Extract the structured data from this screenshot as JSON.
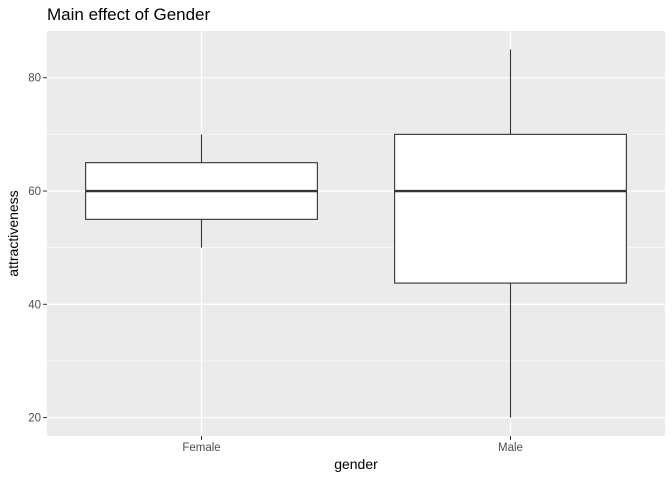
{
  "chart_data": {
    "type": "boxplot",
    "title": "Main effect of Gender",
    "xlabel": "gender",
    "ylabel": "attractiveness",
    "categories": [
      "Female",
      "Male"
    ],
    "boxes": [
      {
        "category": "Female",
        "whisker_low": 50,
        "q1": 55,
        "median": 60,
        "q3": 65,
        "whisker_high": 70
      },
      {
        "category": "Male",
        "whisker_low": 20,
        "q1": 43.75,
        "median": 60,
        "q3": 70,
        "whisker_high": 85
      }
    ],
    "ylim": [
      16.75,
      88.25
    ],
    "yticks": [
      20,
      40,
      60,
      80
    ],
    "ytick_labels": [
      "20",
      "40",
      "60",
      "80"
    ],
    "grid": true,
    "colors": {
      "panel_background": "#ebebeb",
      "grid": "#ffffff",
      "box_fill": "#ffffff",
      "box_line": "#333333",
      "tick_label": "#4d4d4d"
    }
  }
}
